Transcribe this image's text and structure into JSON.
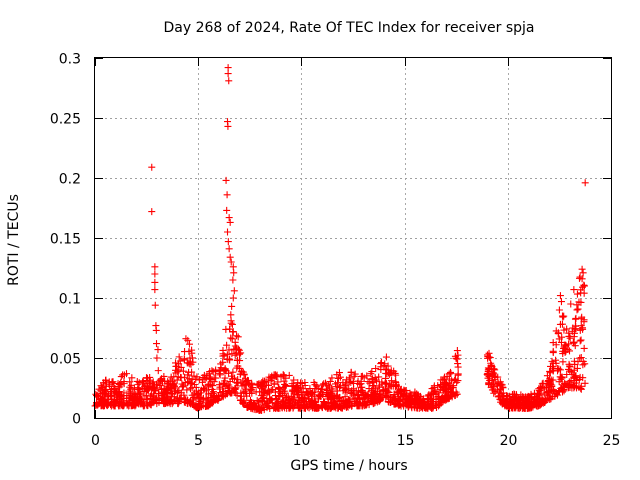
{
  "chart_data": {
    "type": "scatter",
    "title": "Day 268 of 2024, Rate Of TEC Index for receiver spja",
    "xlabel": "GPS time / hours",
    "ylabel": "ROTI / TECUs",
    "xlim": [
      0,
      25
    ],
    "ylim": [
      0,
      0.3
    ],
    "xticks": [
      0,
      5,
      10,
      15,
      20,
      25
    ],
    "xtick_labels": [
      "0",
      "5",
      "10",
      "15",
      "20",
      "25"
    ],
    "yticks": [
      0,
      0.05,
      0.1,
      0.15,
      0.2,
      0.25,
      0.3
    ],
    "ytick_labels": [
      "0",
      "0.05",
      "0.1",
      "0.15",
      "0.2",
      "0.25",
      "0.3"
    ],
    "grid": true,
    "marker": "+",
    "series_color": "#ff0000",
    "envelope": [
      [
        0.0,
        0.01,
        0.022
      ],
      [
        0.5,
        0.01,
        0.032
      ],
      [
        1.0,
        0.01,
        0.03
      ],
      [
        1.5,
        0.01,
        0.04
      ],
      [
        2.0,
        0.01,
        0.03
      ],
      [
        2.5,
        0.01,
        0.035
      ],
      [
        3.0,
        0.012,
        0.045
      ],
      [
        3.5,
        0.012,
        0.03
      ],
      [
        4.0,
        0.012,
        0.05
      ],
      [
        4.5,
        0.012,
        0.07
      ],
      [
        5.0,
        0.008,
        0.035
      ],
      [
        5.5,
        0.01,
        0.04
      ],
      [
        6.0,
        0.015,
        0.045
      ],
      [
        6.4,
        0.02,
        0.08
      ],
      [
        6.8,
        0.02,
        0.09
      ],
      [
        7.2,
        0.01,
        0.04
      ],
      [
        7.5,
        0.008,
        0.03
      ],
      [
        8.0,
        0.006,
        0.03
      ],
      [
        8.5,
        0.008,
        0.035
      ],
      [
        9.0,
        0.008,
        0.04
      ],
      [
        9.5,
        0.008,
        0.035
      ],
      [
        10.0,
        0.008,
        0.03
      ],
      [
        10.5,
        0.008,
        0.03
      ],
      [
        11.0,
        0.008,
        0.03
      ],
      [
        11.5,
        0.008,
        0.035
      ],
      [
        12.0,
        0.008,
        0.04
      ],
      [
        12.5,
        0.01,
        0.04
      ],
      [
        13.0,
        0.01,
        0.035
      ],
      [
        13.5,
        0.012,
        0.04
      ],
      [
        14.0,
        0.015,
        0.052
      ],
      [
        14.4,
        0.012,
        0.048
      ],
      [
        14.8,
        0.01,
        0.025
      ],
      [
        15.5,
        0.008,
        0.022
      ],
      [
        16.0,
        0.008,
        0.015
      ],
      [
        16.5,
        0.008,
        0.03
      ],
      [
        17.0,
        0.015,
        0.035
      ],
      [
        17.6,
        0.02,
        0.06
      ],
      [
        19.0,
        0.03,
        0.058
      ],
      [
        19.5,
        0.015,
        0.035
      ],
      [
        20.0,
        0.008,
        0.02
      ],
      [
        20.5,
        0.008,
        0.02
      ],
      [
        21.0,
        0.008,
        0.018
      ],
      [
        21.5,
        0.01,
        0.025
      ],
      [
        22.0,
        0.015,
        0.04
      ],
      [
        22.5,
        0.02,
        0.1
      ],
      [
        23.0,
        0.025,
        0.07
      ],
      [
        23.5,
        0.025,
        0.12
      ],
      [
        23.75,
        0.02,
        0.11
      ]
    ],
    "highlights": [
      [
        2.75,
        0.209
      ],
      [
        2.75,
        0.172
      ],
      [
        2.9,
        0.126
      ],
      [
        2.9,
        0.12
      ],
      [
        2.9,
        0.113
      ],
      [
        2.9,
        0.107
      ],
      [
        2.92,
        0.094
      ],
      [
        2.95,
        0.077
      ],
      [
        2.97,
        0.073
      ],
      [
        2.98,
        0.062
      ],
      [
        3.0,
        0.05
      ],
      [
        3.05,
        0.057
      ],
      [
        6.45,
        0.292
      ],
      [
        6.45,
        0.287
      ],
      [
        6.48,
        0.281
      ],
      [
        6.42,
        0.247
      ],
      [
        6.44,
        0.243
      ],
      [
        6.35,
        0.198
      ],
      [
        6.4,
        0.186
      ],
      [
        6.38,
        0.173
      ],
      [
        6.5,
        0.167
      ],
      [
        6.55,
        0.163
      ],
      [
        6.42,
        0.155
      ],
      [
        6.46,
        0.147
      ],
      [
        6.5,
        0.141
      ],
      [
        6.55,
        0.134
      ],
      [
        6.6,
        0.13
      ],
      [
        6.7,
        0.126
      ],
      [
        6.72,
        0.121
      ],
      [
        6.68,
        0.115
      ],
      [
        6.75,
        0.106
      ],
      [
        6.7,
        0.1
      ],
      [
        6.62,
        0.093
      ],
      [
        6.58,
        0.086
      ],
      [
        6.66,
        0.078
      ],
      [
        6.7,
        0.072
      ],
      [
        6.65,
        0.066
      ],
      [
        6.8,
        0.06
      ],
      [
        6.85,
        0.054
      ],
      [
        6.9,
        0.048
      ],
      [
        22.55,
        0.102
      ],
      [
        22.6,
        0.097
      ],
      [
        22.5,
        0.09
      ],
      [
        22.65,
        0.085
      ],
      [
        22.55,
        0.078
      ],
      [
        22.45,
        0.071
      ],
      [
        22.6,
        0.063
      ],
      [
        22.7,
        0.058
      ],
      [
        23.2,
        0.107
      ],
      [
        23.05,
        0.095
      ],
      [
        23.3,
        0.083
      ],
      [
        23.15,
        0.075
      ],
      [
        23.0,
        0.068
      ],
      [
        23.6,
        0.124
      ],
      [
        23.65,
        0.121
      ],
      [
        23.6,
        0.116
      ],
      [
        23.62,
        0.109
      ],
      [
        23.7,
        0.104
      ],
      [
        23.58,
        0.084
      ],
      [
        23.62,
        0.075
      ],
      [
        23.55,
        0.065
      ],
      [
        23.7,
        0.058
      ],
      [
        23.75,
        0.196
      ]
    ]
  }
}
